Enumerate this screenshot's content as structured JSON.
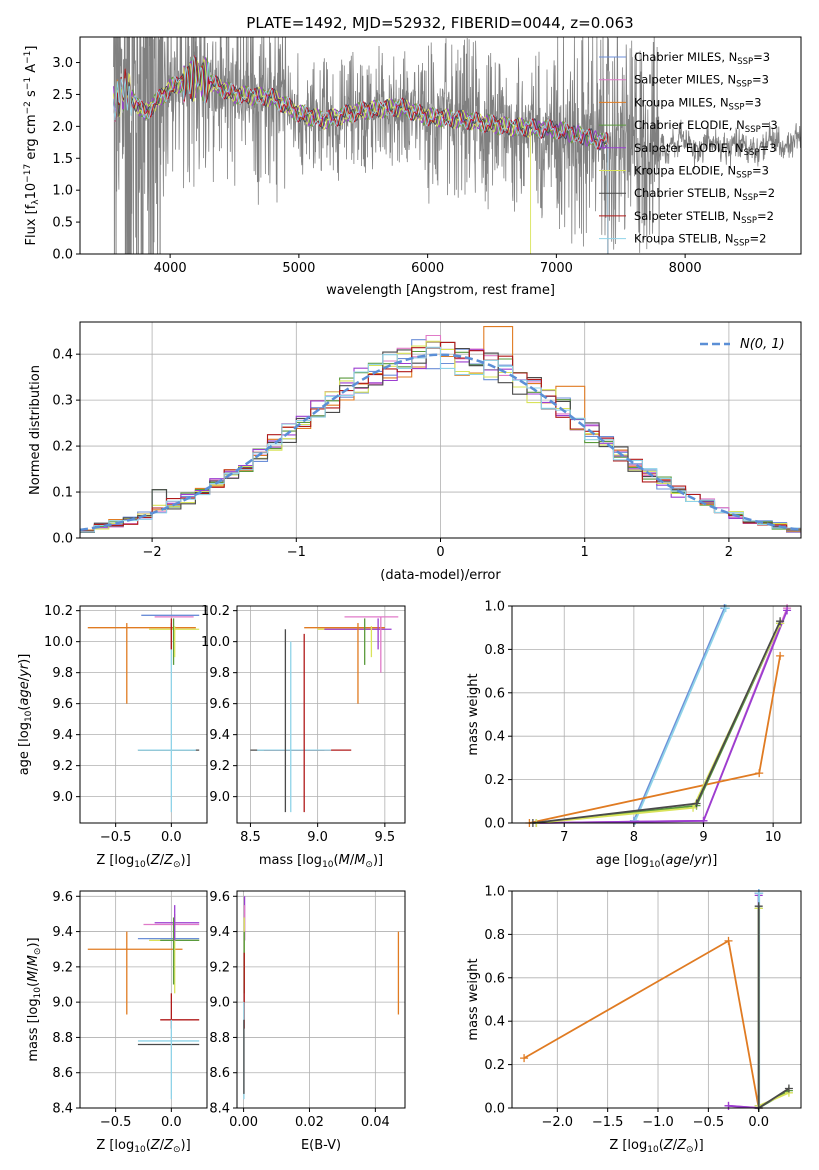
{
  "figure": {
    "title": "PLATE=1492, MJD=52932, FIBERID=0044, z=0.063"
  },
  "colors": {
    "observed": "#808080",
    "normal_curve": "#5b8fd6"
  },
  "legend_spectrum": [
    {
      "label": "Chabrier MILES, N",
      "sub": "SSP",
      "suffix": "=3",
      "color": "#6c8fd8"
    },
    {
      "label": "Salpeter MILES, N",
      "sub": "SSP",
      "suffix": "=3",
      "color": "#e07ac8"
    },
    {
      "label": "Kroupa MILES, N",
      "sub": "SSP",
      "suffix": "=3",
      "color": "#e07b22"
    },
    {
      "label": "Chabrier ELODIE, N",
      "sub": "SSP",
      "suffix": "=3",
      "color": "#5a9a3c"
    },
    {
      "label": "Salpeter ELODIE, N",
      "sub": "SSP",
      "suffix": "=3",
      "color": "#9b3ed1"
    },
    {
      "label": "Kroupa ELODIE, N",
      "sub": "SSP",
      "suffix": "=3",
      "color": "#d9e35a"
    },
    {
      "label": "Chabrier STELIB, N",
      "sub": "SSP",
      "suffix": "=2",
      "color": "#4a4a4a"
    },
    {
      "label": "Salpeter STELIB, N",
      "sub": "SSP",
      "suffix": "=2",
      "color": "#b01a1a"
    },
    {
      "label": "Kroupa STELIB, N",
      "sub": "SSP",
      "suffix": "=2",
      "color": "#8fd3e8"
    }
  ],
  "legend_hist": {
    "label": "N(0, 1)"
  },
  "chart_data": [
    {
      "id": "spectrum",
      "type": "line",
      "xlabel": "wavelength [Angstrom, rest frame]",
      "ylabel": "Flux [f_λ10^-17 erg cm^-2 s^-1 A^-1]",
      "xlim": [
        3300,
        8900
      ],
      "ylim": [
        0,
        3.4
      ],
      "xticks": [
        4000,
        5000,
        6000,
        7000,
        8000
      ],
      "yticks": [
        0.0,
        0.5,
        1.0,
        1.5,
        2.0,
        2.5,
        3.0
      ],
      "observed_coverage": [
        3560,
        8900
      ],
      "model_continuum_x": [
        3560,
        3650,
        3800,
        4000,
        4200,
        4500,
        4800,
        5000,
        5200,
        5500,
        5800,
        6000,
        6300,
        6600,
        7000,
        7400
      ],
      "model_continuum_y": [
        2.3,
        2.6,
        2.2,
        2.6,
        2.8,
        2.5,
        2.45,
        2.2,
        2.1,
        2.25,
        2.3,
        2.15,
        2.1,
        2.0,
        1.95,
        1.75
      ],
      "observed_continuum_x": [
        7400,
        7700,
        8000,
        8300,
        8600,
        8900
      ],
      "observed_continuum_y": [
        1.72,
        1.75,
        1.72,
        1.68,
        1.7,
        1.76
      ],
      "drop_x": [
        6800,
        7400
      ]
    },
    {
      "id": "residual_hist",
      "type": "line",
      "xlabel": "(data-model)/error",
      "ylabel": "Normed distribution",
      "xlim": [
        -2.5,
        2.5
      ],
      "ylim": [
        0,
        0.47
      ],
      "xticks": [
        -2,
        -1,
        0,
        1,
        2
      ],
      "yticks": [
        0.0,
        0.1,
        0.2,
        0.3,
        0.4
      ],
      "bin_width": 0.1,
      "curve": "normal(0,1)"
    },
    {
      "id": "age_vs_Z",
      "type": "scatter",
      "xlabel": "Z [log10(Z/Z⊙)]",
      "ylabel": "age  [log10(age/yr)]",
      "xlim": [
        -0.82,
        0.32
      ],
      "ylim": [
        8.83,
        10.23
      ],
      "xticks": [
        -0.5,
        0.0
      ],
      "yticks": [
        9.0,
        9.2,
        9.4,
        9.6,
        9.8,
        10.0,
        10.2
      ],
      "h_segments": [
        {
          "x1": -0.27,
          "x2": 0.25,
          "y": 10.17,
          "c": 0
        },
        {
          "x1": -0.15,
          "x2": 0.2,
          "y": 10.16,
          "c": 1
        },
        {
          "x1": -0.75,
          "x2": 0.22,
          "y": 10.09,
          "c": 2
        },
        {
          "x1": -0.2,
          "x2": 0.25,
          "y": 10.08,
          "c": 5
        },
        {
          "x1": -0.3,
          "x2": 0.25,
          "y": 9.3,
          "c": 6
        },
        {
          "x1": -0.3,
          "x2": 0.22,
          "y": 9.3,
          "c": 8
        }
      ],
      "v_segments": [
        {
          "x": -0.4,
          "y1": 9.6,
          "y2": 10.12,
          "c": 2
        },
        {
          "x": 0.02,
          "y1": 9.85,
          "y2": 10.15,
          "c": 3
        },
        {
          "x": 0.0,
          "y1": 9.95,
          "y2": 10.12,
          "c": 4
        },
        {
          "x": 0.03,
          "y1": 9.9,
          "y2": 10.1,
          "c": 5
        },
        {
          "x": 0.0,
          "y1": 8.9,
          "y2": 10.05,
          "c": 8
        },
        {
          "x": 0.0,
          "y1": 9.95,
          "y2": 10.15,
          "c": 7
        }
      ]
    },
    {
      "id": "age_vs_mass",
      "type": "scatter",
      "xlabel": "mass [log10(M/M⊙)]",
      "ylabel": "",
      "xlim": [
        8.4,
        9.65
      ],
      "ylim": [
        8.83,
        10.23
      ],
      "xticks": [
        8.5,
        9.0,
        9.5
      ],
      "yticks": [
        9.0,
        9.2,
        9.4,
        9.6,
        9.8,
        10.0,
        10.2
      ],
      "h_segments": [
        {
          "x1": 9.2,
          "x2": 9.6,
          "y": 10.16,
          "c": 1
        },
        {
          "x1": 8.9,
          "x2": 9.5,
          "y": 10.09,
          "c": 2
        },
        {
          "x1": 9.0,
          "x2": 9.5,
          "y": 10.08,
          "c": 5
        },
        {
          "x1": 9.05,
          "x2": 9.55,
          "y": 10.08,
          "c": 4
        },
        {
          "x1": 8.5,
          "x2": 9.05,
          "y": 9.3,
          "c": 6
        },
        {
          "x1": 8.6,
          "x2": 9.25,
          "y": 9.3,
          "c": 7
        },
        {
          "x1": 8.55,
          "x2": 9.1,
          "y": 9.3,
          "c": 8
        }
      ],
      "v_segments": [
        {
          "x": 9.3,
          "y1": 9.6,
          "y2": 10.12,
          "c": 2
        },
        {
          "x": 9.35,
          "y1": 9.85,
          "y2": 10.15,
          "c": 3
        },
        {
          "x": 9.45,
          "y1": 9.95,
          "y2": 10.15,
          "c": 4
        },
        {
          "x": 9.4,
          "y1": 9.9,
          "y2": 10.1,
          "c": 5
        },
        {
          "x": 9.47,
          "y1": 9.8,
          "y2": 10.16,
          "c": 1
        },
        {
          "x": 8.76,
          "y1": 8.9,
          "y2": 10.08,
          "c": 6
        },
        {
          "x": 8.9,
          "y1": 8.9,
          "y2": 10.05,
          "c": 7
        },
        {
          "x": 8.8,
          "y1": 8.9,
          "y2": 10.0,
          "c": 8
        }
      ]
    },
    {
      "id": "massweight_vs_age",
      "type": "line",
      "xlabel": "age  [log10(age/yr)]",
      "ylabel": "mass weight",
      "xlim": [
        6.25,
        10.4
      ],
      "ylim": [
        0,
        1.0
      ],
      "xticks": [
        7,
        8,
        9,
        10
      ],
      "yticks": [
        0.0,
        0.2,
        0.4,
        0.6,
        0.8,
        1.0
      ],
      "series": [
        {
          "c": 0,
          "x": [
            8.0,
            9.3
          ],
          "y": [
            0.01,
            0.99
          ]
        },
        {
          "c": 8,
          "x": [
            8.02,
            9.32
          ],
          "y": [
            0.01,
            0.99
          ]
        },
        {
          "c": 1,
          "x": [
            6.6,
            9.0,
            10.2
          ],
          "y": [
            0.0,
            0.01,
            0.99
          ]
        },
        {
          "c": 4,
          "x": [
            6.6,
            9.0,
            10.2
          ],
          "y": [
            0.0,
            0.01,
            0.98
          ]
        },
        {
          "c": 2,
          "x": [
            6.5,
            9.8,
            10.1
          ],
          "y": [
            0.0,
            0.23,
            0.77
          ]
        },
        {
          "c": 3,
          "x": [
            6.6,
            8.9,
            10.1
          ],
          "y": [
            0.0,
            0.08,
            0.92
          ]
        },
        {
          "c": 5,
          "x": [
            6.6,
            8.85,
            10.1
          ],
          "y": [
            0.0,
            0.07,
            0.92
          ]
        },
        {
          "c": 6,
          "x": [
            6.55,
            8.9,
            10.1
          ],
          "y": [
            0.0,
            0.09,
            0.93
          ]
        }
      ]
    },
    {
      "id": "mass_vs_Z",
      "type": "scatter",
      "xlabel": "Z [log10(Z/Z⊙)]",
      "ylabel": "mass [log10(M/M⊙)]",
      "xlim": [
        -0.82,
        0.32
      ],
      "ylim": [
        8.4,
        9.63
      ],
      "xticks": [
        -0.5,
        0.0
      ],
      "yticks": [
        8.4,
        8.6,
        8.8,
        9.0,
        9.2,
        9.4,
        9.6
      ],
      "h_segments": [
        {
          "x1": -0.75,
          "x2": 0.1,
          "y": 9.3,
          "c": 2
        },
        {
          "x1": -0.2,
          "x2": 0.25,
          "y": 9.35,
          "c": 5
        },
        {
          "x1": -0.3,
          "x2": 0.25,
          "y": 9.36,
          "c": 0
        },
        {
          "x1": -0.25,
          "x2": 0.25,
          "y": 9.44,
          "c": 1
        },
        {
          "x1": -0.15,
          "x2": 0.25,
          "y": 9.45,
          "c": 4
        },
        {
          "x1": -0.1,
          "x2": 0.25,
          "y": 9.35,
          "c": 3
        },
        {
          "x1": -0.1,
          "x2": 0.25,
          "y": 8.9,
          "c": 7
        },
        {
          "x1": -0.3,
          "x2": 0.25,
          "y": 8.76,
          "c": 6
        },
        {
          "x1": -0.3,
          "x2": 0.25,
          "y": 8.78,
          "c": 8
        }
      ],
      "v_segments": [
        {
          "x": -0.4,
          "y1": 8.93,
          "y2": 9.4,
          "c": 2
        },
        {
          "x": 0.03,
          "y1": 9.05,
          "y2": 9.5,
          "c": 5
        },
        {
          "x": 0.02,
          "y1": 9.1,
          "y2": 9.48,
          "c": 3
        },
        {
          "x": 0.03,
          "y1": 9.35,
          "y2": 9.55,
          "c": 4
        },
        {
          "x": 0.0,
          "y1": 8.85,
          "y2": 9.05,
          "c": 7
        },
        {
          "x": 0.0,
          "y1": 8.45,
          "y2": 8.9,
          "c": 8
        }
      ]
    },
    {
      "id": "mass_vs_ebv",
      "type": "scatter",
      "xlabel": "E(B-V)",
      "ylabel": "",
      "xlim": [
        -0.002,
        0.049
      ],
      "ylim": [
        8.4,
        9.63
      ],
      "xticks": [
        0.0,
        0.02,
        0.04
      ],
      "yticks": [
        8.4,
        8.6,
        8.8,
        9.0,
        9.2,
        9.4,
        9.6
      ],
      "v_segments": [
        {
          "x": 0.047,
          "y1": 8.93,
          "y2": 9.4,
          "c": 2
        },
        {
          "x": 0.0003,
          "y1": 9.35,
          "y2": 9.6,
          "c": 4
        },
        {
          "x": 0.0003,
          "y1": 9.35,
          "y2": 9.55,
          "c": 1
        },
        {
          "x": 0.0002,
          "y1": 9.1,
          "y2": 9.48,
          "c": 5
        },
        {
          "x": 0.0002,
          "y1": 9.05,
          "y2": 9.4,
          "c": 3
        },
        {
          "x": 0.0002,
          "y1": 8.85,
          "y2": 9.28,
          "c": 7
        },
        {
          "x": 0.0001,
          "y1": 8.45,
          "y2": 9.0,
          "c": 8
        },
        {
          "x": 0.0001,
          "y1": 8.48,
          "y2": 8.9,
          "c": 6
        }
      ]
    },
    {
      "id": "massweight_vs_Z",
      "type": "line",
      "xlabel": "Z [log10(Z/Z⊙)]",
      "ylabel": "mass weight",
      "xlim": [
        -2.45,
        0.42
      ],
      "ylim": [
        0,
        1.0
      ],
      "xticks": [
        -2.0,
        -1.5,
        -1.0,
        -0.5,
        0.0
      ],
      "yticks": [
        0.0,
        0.2,
        0.4,
        0.6,
        0.8,
        1.0
      ],
      "series": [
        {
          "c": 2,
          "x": [
            -2.33,
            -0.3,
            0.0
          ],
          "y": [
            0.23,
            0.77,
            0.0
          ]
        },
        {
          "c": 1,
          "x": [
            -0.3,
            0.0,
            0.0
          ],
          "y": [
            0.01,
            0.0,
            0.99
          ]
        },
        {
          "c": 4,
          "x": [
            -0.3,
            0.0,
            0.0
          ],
          "y": [
            0.01,
            0.0,
            0.98
          ]
        },
        {
          "c": 0,
          "x": [
            0.0,
            0.0
          ],
          "y": [
            0.01,
            0.99
          ]
        },
        {
          "c": 8,
          "x": [
            0.005,
            0.005
          ],
          "y": [
            0.01,
            0.99
          ]
        },
        {
          "c": 3,
          "x": [
            0.0,
            0.0,
            0.3
          ],
          "y": [
            0.92,
            0.0,
            0.08
          ]
        },
        {
          "c": 5,
          "x": [
            0.0,
            0.0,
            0.3
          ],
          "y": [
            0.92,
            0.01,
            0.07
          ]
        },
        {
          "c": 6,
          "x": [
            0.0,
            0.0,
            0.3
          ],
          "y": [
            0.93,
            0.0,
            0.09
          ]
        }
      ]
    }
  ]
}
